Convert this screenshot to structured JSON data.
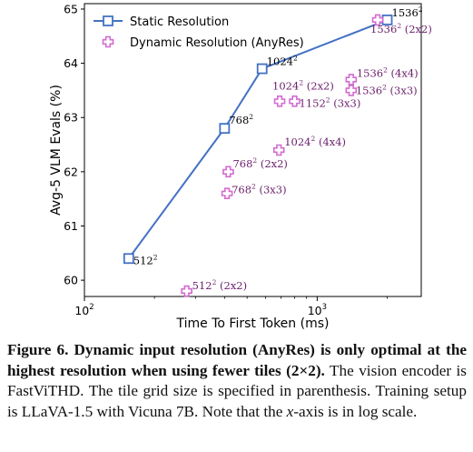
{
  "chart_data": {
    "type": "scatter",
    "xlabel": "Time To First Token (ms)",
    "ylabel": "Avg-5 VLM Evals (%)",
    "x_scale": "log",
    "xlim": [
      100,
      2800
    ],
    "ylim": [
      59.7,
      65.1
    ],
    "x_ticks": [
      {
        "value": 100,
        "base": "10",
        "exp": "2"
      },
      {
        "value": 1000,
        "base": "10",
        "exp": "3"
      }
    ],
    "y_ticks": [
      60,
      61,
      62,
      63,
      64,
      65
    ],
    "grid": false,
    "legend_position": "top-left",
    "series": [
      {
        "name": "Static Resolution",
        "color": "#4472C4",
        "marker": "square",
        "connected": true,
        "points": [
          {
            "x": 155,
            "y": 60.4,
            "res": "512",
            "exp": "2",
            "tiles": ""
          },
          {
            "x": 400,
            "y": 62.8,
            "res": "768",
            "exp": "2",
            "tiles": ""
          },
          {
            "x": 580,
            "y": 63.9,
            "res": "1024",
            "exp": "2",
            "tiles": ""
          },
          {
            "x": 2000,
            "y": 64.8,
            "res": "1536",
            "exp": "2",
            "tiles": ""
          }
        ]
      },
      {
        "name": "Dynamic Resolution (AnyRes)",
        "color": "#D36BD1",
        "marker": "plus",
        "connected": false,
        "points": [
          {
            "x": 275,
            "y": 59.8,
            "res": "512",
            "exp": "2",
            "tiles": "(2x2)"
          },
          {
            "x": 415,
            "y": 62.0,
            "res": "768",
            "exp": "2",
            "tiles": "(2x2)"
          },
          {
            "x": 410,
            "y": 61.6,
            "res": "768",
            "exp": "2",
            "tiles": "(3x3)"
          },
          {
            "x": 690,
            "y": 63.3,
            "res": "1024",
            "exp": "2",
            "tiles": "(2x2)"
          },
          {
            "x": 800,
            "y": 63.3,
            "res": "1152",
            "exp": "2",
            "tiles": "(3x3)"
          },
          {
            "x": 685,
            "y": 62.4,
            "res": "1024",
            "exp": "2",
            "tiles": "(4x4)"
          },
          {
            "x": 1400,
            "y": 63.7,
            "res": "1536",
            "exp": "2",
            "tiles": "(4x4)"
          },
          {
            "x": 1400,
            "y": 63.5,
            "res": "1536",
            "exp": "2",
            "tiles": "(3x3)"
          },
          {
            "x": 1820,
            "y": 64.8,
            "res": "1536",
            "exp": "2",
            "tiles": "(2x2)"
          }
        ]
      }
    ]
  },
  "caption": {
    "label": "Figure 6.",
    "bold": "Dynamic input resolution (AnyRes) is only optimal at the highest resolution when using fewer tiles (2×2).",
    "rest_before_x": "The vision encoder is FastViTHD. The tile grid size is specified in parenthesis. Training setup is LLaVA-1.5 with Vicuna 7B. Note that the",
    "x_var": "x",
    "rest_after_x": "-axis is in log scale."
  }
}
